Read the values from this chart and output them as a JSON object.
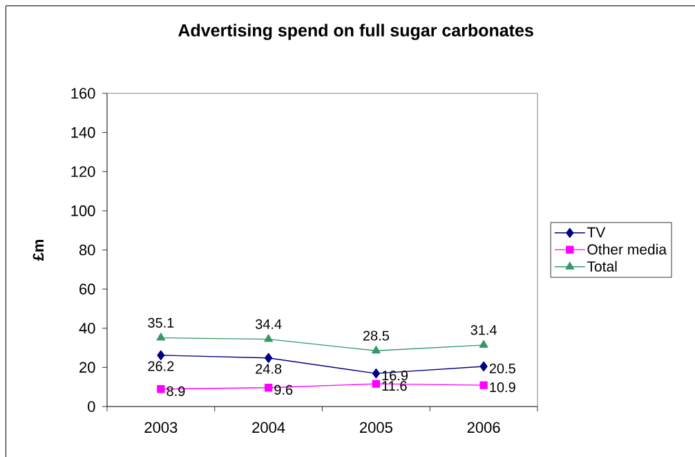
{
  "chart_data": {
    "type": "line",
    "title": "Advertising spend on full sugar carbonates",
    "ylabel": "£m",
    "categories": [
      "2003",
      "2004",
      "2005",
      "2006"
    ],
    "series": [
      {
        "name": "TV",
        "color": "#000080",
        "marker": "diamond",
        "values": [
          26.2,
          24.8,
          16.9,
          20.5
        ]
      },
      {
        "name": "Other media",
        "color": "#ff00ff",
        "marker": "square",
        "values": [
          8.9,
          9.6,
          11.6,
          10.9
        ]
      },
      {
        "name": "Total",
        "color": "#339966",
        "marker": "triangle",
        "values": [
          35.1,
          34.4,
          28.5,
          31.4
        ]
      }
    ],
    "ylim": [
      0,
      160
    ],
    "yticks": [
      0,
      20,
      40,
      60,
      80,
      100,
      120,
      140,
      160
    ],
    "data_labels": true,
    "legend": "right"
  }
}
